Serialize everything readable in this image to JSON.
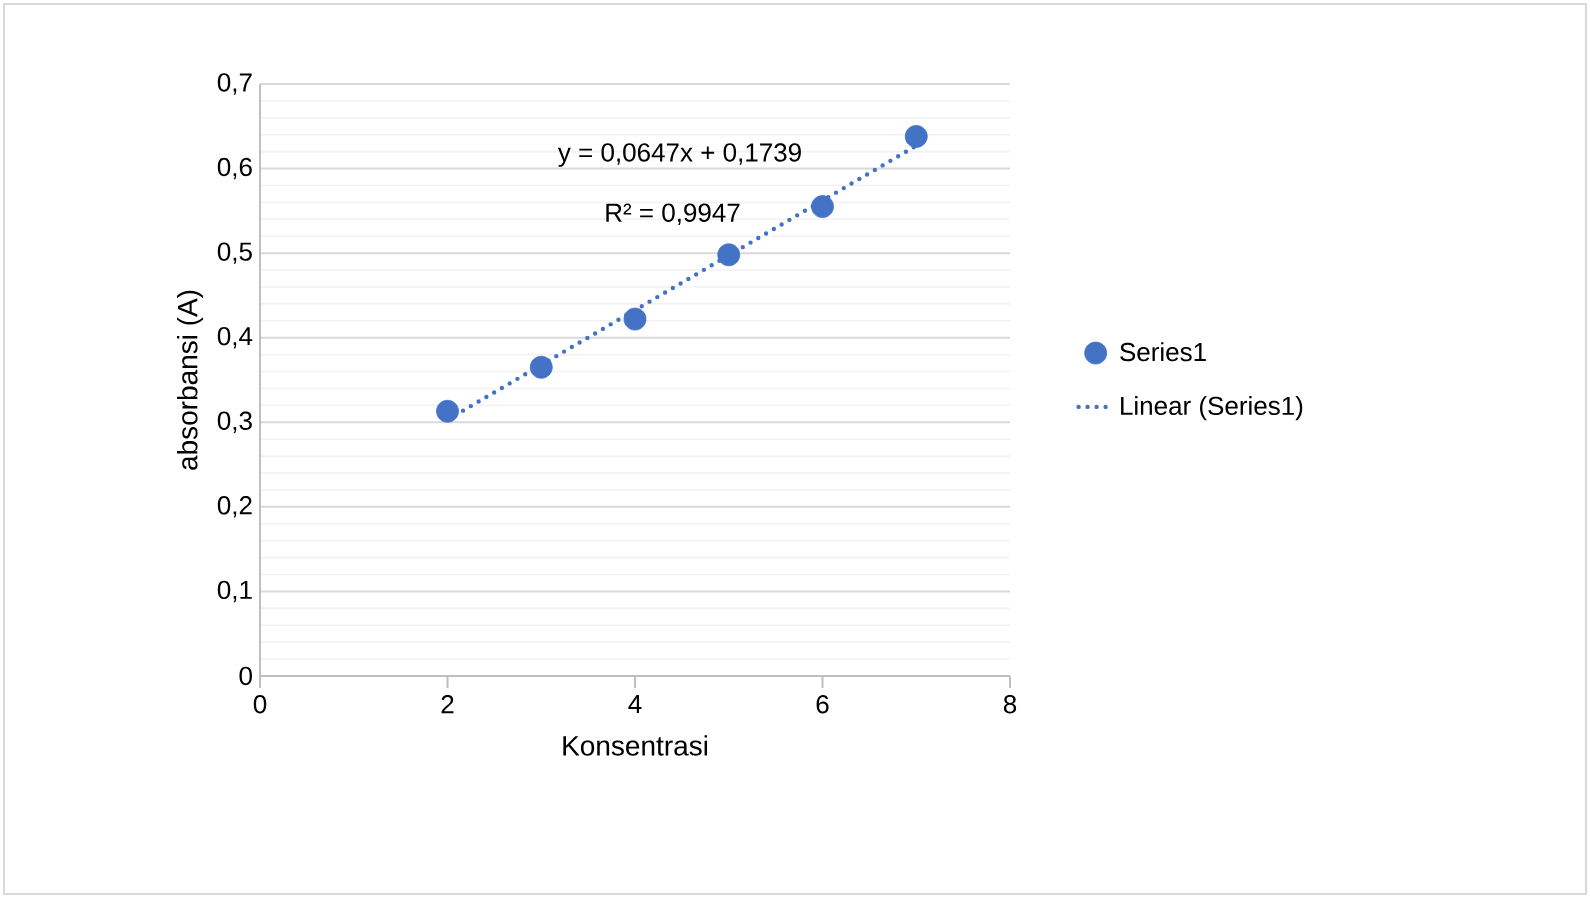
{
  "chart_data": {
    "type": "scatter",
    "xlabel": "Konsentrasi",
    "ylabel": "absorbansi (A)",
    "xlim": [
      0,
      8
    ],
    "xticks": [
      0,
      2,
      4,
      6,
      8
    ],
    "ylim": [
      0,
      0.7
    ],
    "yticks": [
      0,
      {
        "value": 0.1,
        "label": "0,1"
      },
      {
        "value": 0.2,
        "label": "0,2"
      },
      {
        "value": 0.3,
        "label": "0,3"
      },
      {
        "value": 0.4,
        "label": "0,4"
      },
      {
        "value": 0.5,
        "label": "0,5"
      },
      {
        "value": 0.6,
        "label": "0,6"
      },
      {
        "value": 0.7,
        "label": "0,7"
      }
    ],
    "grid": "y",
    "legend": "right",
    "marker": "circle",
    "series": [
      {
        "name": "Series1",
        "color": "#4472c4",
        "x": [
          2,
          3,
          4,
          5,
          6,
          7
        ],
        "values": [
          0.313,
          0.365,
          0.422,
          0.498,
          0.555,
          0.638
        ]
      },
      {
        "name": "Linear (Series1)",
        "type": "line",
        "line_style": "dotted",
        "marker": "none",
        "color": "#4472c4",
        "x": [
          2,
          7
        ],
        "values": [
          0.303,
          0.627
        ]
      }
    ],
    "annotations": [
      "y = 0,0647x + 0,1739",
      "R² = 0,9947"
    ]
  }
}
